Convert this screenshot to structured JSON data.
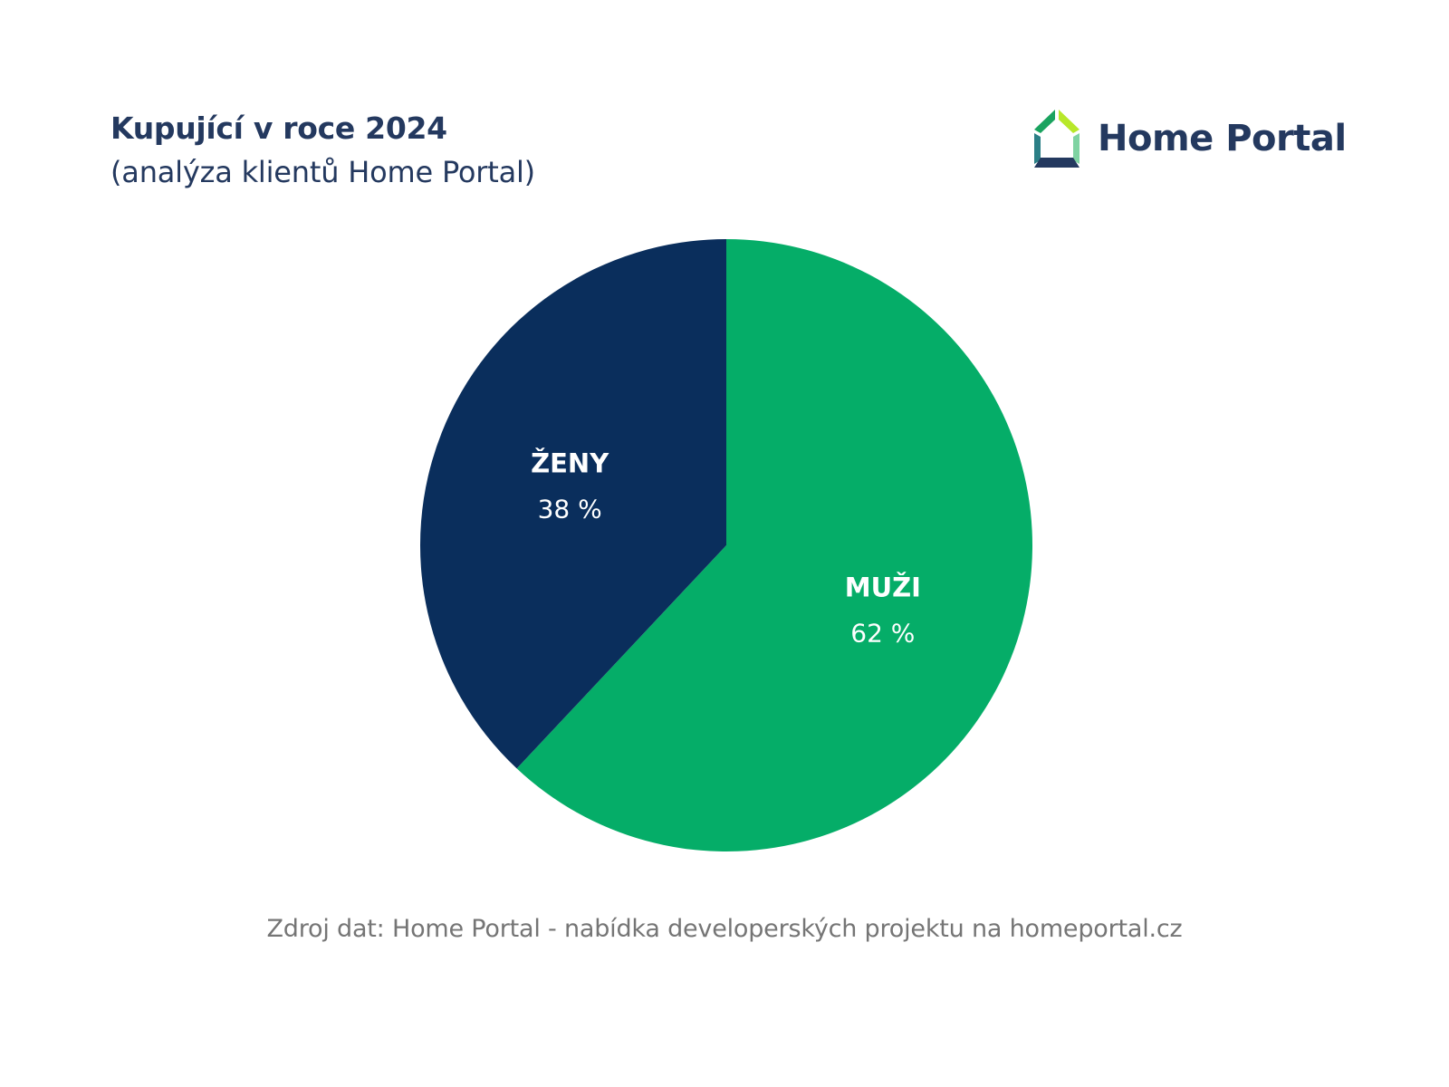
{
  "header": {
    "title": "Kupující v roce 2024",
    "subtitle": "(analýza klientů Home Portal)"
  },
  "brand": {
    "name": "Home Portal",
    "logo_icon": "house-outline-icon"
  },
  "chart_data": {
    "type": "pie",
    "title": "Kupující v roce 2024",
    "subtitle": "(analýza klientů Home Portal)",
    "slices": [
      {
        "label": "MUŽI",
        "value": 62,
        "value_label": "62 %",
        "color": "#05ad68"
      },
      {
        "label": "ŽENY",
        "value": 38,
        "value_label": "38 %",
        "color": "#0a2e5c"
      }
    ],
    "start": "12 o'clock",
    "direction": "clockwise",
    "legend": "none"
  },
  "footer": {
    "source": "Zdroj dat: Home Portal - nabídka developerských projektu na homeportal.cz"
  },
  "colors": {
    "heading": "#24395f",
    "source_text": "#757575",
    "logo_green": "#1aa35f",
    "logo_lime": "#b8e82a",
    "logo_teal": "#2b7f86",
    "logo_mint": "#7fd3a2"
  }
}
